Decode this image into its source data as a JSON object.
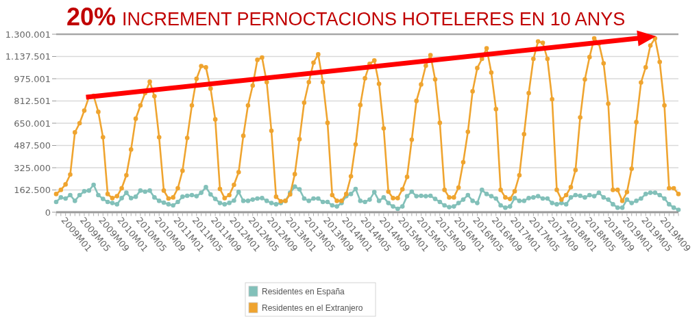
{
  "chart_data": {
    "type": "line",
    "title": "20% INCREMENT PERNOCTACIONS HOTELERES EN 10 ANYS",
    "categories": [
      null,
      "2009M01",
      null,
      null,
      null,
      "2009M05",
      null,
      null,
      null,
      "2009M09",
      null,
      null,
      null,
      "2010M01",
      null,
      null,
      null,
      "2010M05",
      null,
      null,
      null,
      "2010M09",
      null,
      null,
      null,
      "2011M01",
      null,
      null,
      null,
      "2011M05",
      null,
      null,
      null,
      "2011M09",
      null,
      null,
      null,
      "2012M01",
      null,
      null,
      null,
      "2012M05",
      null,
      null,
      null,
      "2012M09",
      null,
      null,
      null,
      "2013M01",
      null,
      null,
      null,
      "2013M05",
      null,
      null,
      null,
      "2013M09",
      null,
      null,
      null,
      "2014M01",
      null,
      null,
      null,
      "2014M05",
      null,
      null,
      null,
      "2014M09",
      null,
      null,
      null,
      "2015M01",
      null,
      null,
      null,
      "2015M05",
      null,
      null,
      null,
      "2015M09",
      null,
      null,
      null,
      "2016M01",
      null,
      null,
      null,
      "2016M05",
      null,
      null,
      null,
      "2016M09",
      null,
      null,
      null,
      "2017M01",
      null,
      null,
      null,
      "2017M05",
      null,
      null,
      null,
      "2017M09",
      null,
      null,
      null,
      "2018M01",
      null,
      null,
      null,
      "2018M05",
      null,
      null,
      null,
      "2018M09",
      null,
      null,
      null,
      "2019M01",
      null,
      null,
      null,
      "2019M05",
      null,
      null,
      null,
      "2019M09",
      null,
      null,
      null,
      null
    ],
    "series": [
      {
        "name": "Residentes en España",
        "color": "#82c0b9",
        "values": [
          75000,
          108000,
          100000,
          125000,
          83000,
          125000,
          153000,
          158000,
          200000,
          125000,
          97000,
          75000,
          67000,
          58000,
          103000,
          142000,
          103000,
          113000,
          158000,
          150000,
          158000,
          108000,
          83000,
          70000,
          58000,
          50000,
          75000,
          113000,
          120000,
          125000,
          117000,
          142000,
          183000,
          130000,
          97000,
          67000,
          58000,
          68000,
          85000,
          148000,
          83000,
          83000,
          92000,
          100000,
          103000,
          83000,
          67000,
          58000,
          67000,
          83000,
          142000,
          187000,
          167000,
          100000,
          83000,
          100000,
          100000,
          75000,
          75000,
          50000,
          42000,
          67000,
          117000,
          133000,
          170000,
          83000,
          75000,
          92000,
          147000,
          83000,
          108000,
          67000,
          42000,
          25000,
          42000,
          117000,
          150000,
          117000,
          120000,
          117000,
          120000,
          97000,
          75000,
          50000,
          37000,
          42000,
          67000,
          92000,
          125000,
          83000,
          67000,
          163000,
          133000,
          117000,
          100000,
          50000,
          33000,
          42000,
          103000,
          83000,
          83000,
          103000,
          108000,
          117000,
          100000,
          100000,
          67000,
          58000,
          67000,
          58000,
          108000,
          125000,
          120000,
          108000,
          125000,
          117000,
          142000,
          108000,
          92000,
          58000,
          33000,
          33000,
          92000,
          67000,
          83000,
          100000,
          133000,
          142000,
          142000,
          125000,
          100000,
          58000,
          33000,
          17000
        ]
      },
      {
        "name": "Residentes en el Extranjero",
        "color": "#efa42f",
        "values": [
          133000,
          163000,
          203000,
          275000,
          583000,
          650000,
          742000,
          842000,
          850000,
          733000,
          547000,
          133000,
          103000,
          117000,
          175000,
          270000,
          458000,
          683000,
          780000,
          870000,
          953000,
          847000,
          547000,
          158000,
          100000,
          108000,
          175000,
          303000,
          542000,
          780000,
          975000,
          1067000,
          1058000,
          903000,
          678000,
          170000,
          103000,
          125000,
          200000,
          292000,
          558000,
          780000,
          925000,
          1113000,
          1130000,
          950000,
          595000,
          113000,
          80000,
          83000,
          130000,
          278000,
          533000,
          800000,
          950000,
          1092000,
          1153000,
          950000,
          653000,
          125000,
          83000,
          83000,
          133000,
          262000,
          495000,
          783000,
          978000,
          1083000,
          1108000,
          937000,
          612000,
          150000,
          103000,
          103000,
          167000,
          258000,
          530000,
          813000,
          933000,
          1070000,
          1147000,
          970000,
          653000,
          163000,
          108000,
          108000,
          180000,
          365000,
          587000,
          883000,
          1053000,
          1120000,
          1197000,
          1020000,
          753000,
          163000,
          108000,
          97000,
          153000,
          270000,
          570000,
          870000,
          1120000,
          1247000,
          1237000,
          1120000,
          825000,
          163000,
          92000,
          125000,
          183000,
          308000,
          692000,
          970000,
          1133000,
          1270000,
          1233000,
          1087000,
          792000,
          163000,
          163000,
          83000,
          147000,
          317000,
          658000,
          947000,
          1058000,
          1217000,
          1270000,
          1097000,
          780000,
          175000,
          175000,
          133000
        ]
      }
    ],
    "ylim": [
      0,
      1300001
    ],
    "yticks": [
      0,
      {
        "value": 162500,
        "label": "162.500"
      },
      {
        "value": 325000,
        "label": "325.000"
      },
      {
        "value": 487500,
        "label": "487.500"
      },
      {
        "value": 650001,
        "label": "650.001"
      },
      {
        "value": 812501,
        "label": "812.501"
      },
      {
        "value": 975001,
        "label": "975.001"
      },
      {
        "value": 1137501,
        "label": "1.137.501"
      },
      {
        "value": 1300001,
        "label": "1.300.001"
      }
    ],
    "grid": "y",
    "legend": "bottom",
    "marker": "circle"
  }
}
